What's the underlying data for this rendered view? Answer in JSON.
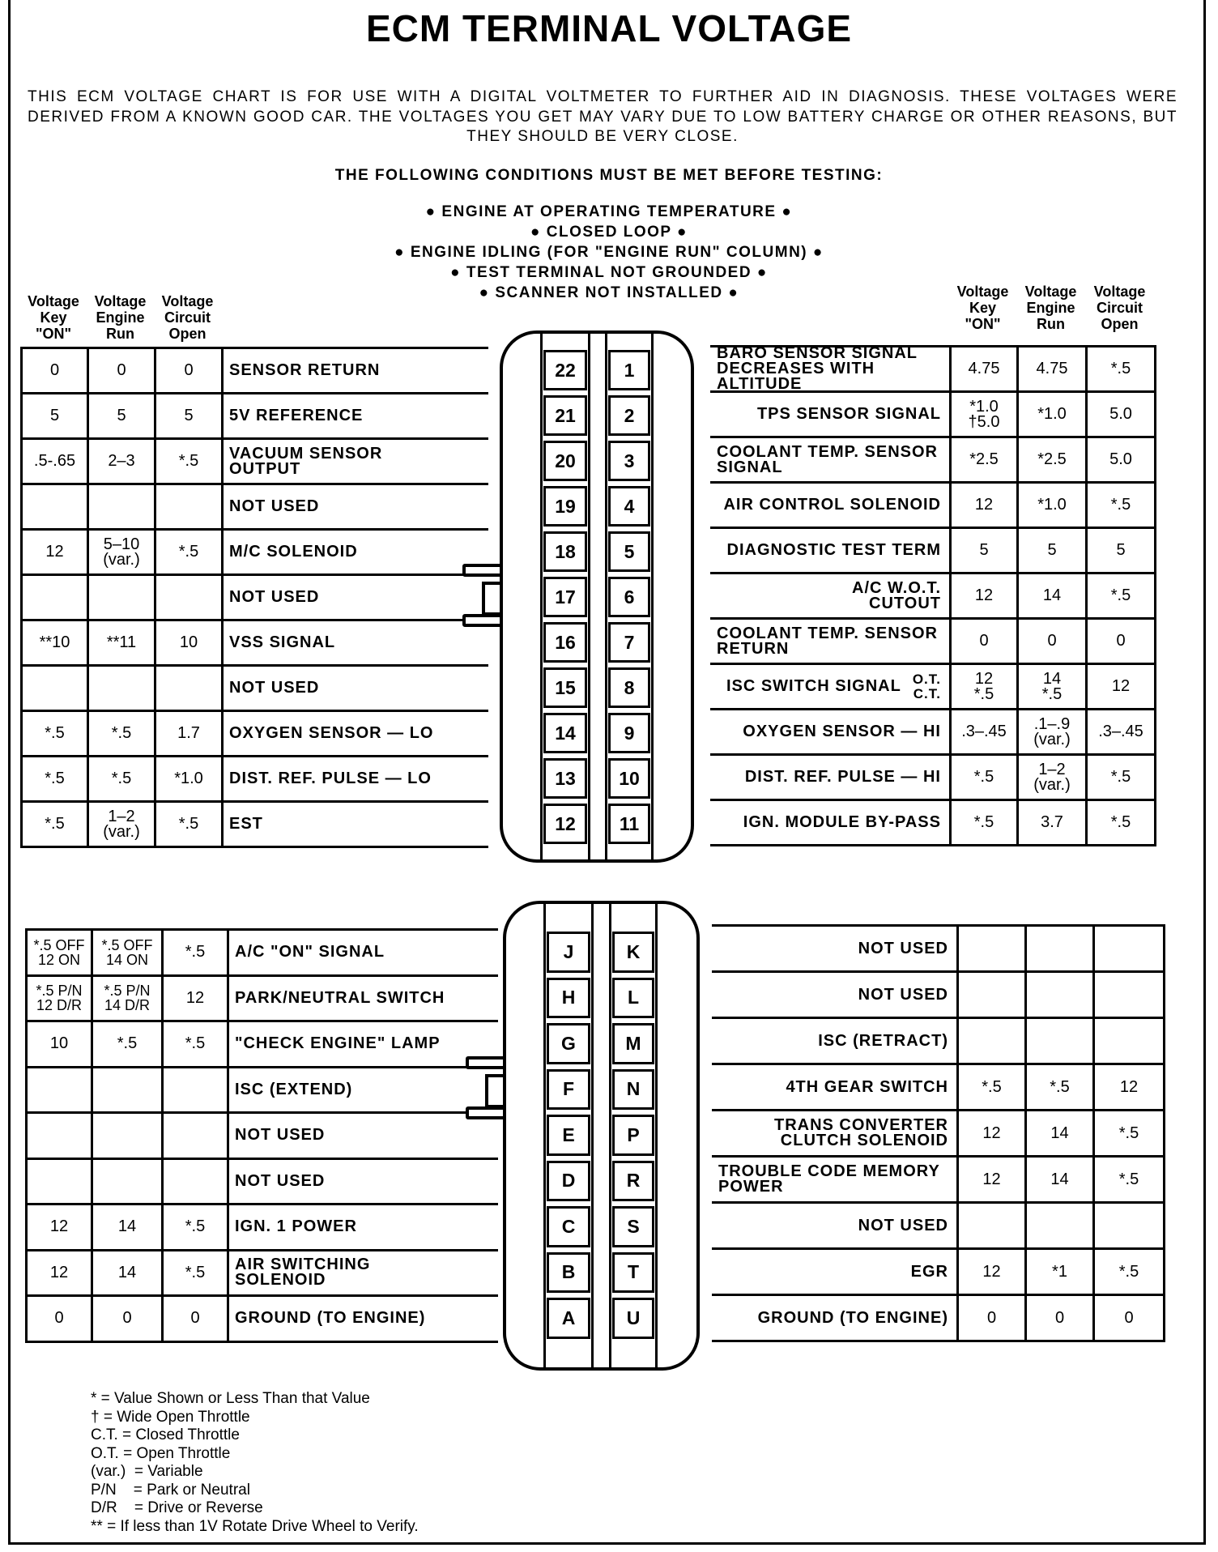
{
  "title": "ECM TERMINAL VOLTAGE",
  "intro": "THIS ECM VOLTAGE CHART IS FOR USE WITH A DIGITAL VOLTMETER TO FURTHER AID IN DIAGNOSIS. THESE VOLTAGES WERE DERIVED FROM A KNOWN GOOD CAR. THE VOLTAGES YOU GET MAY VARY DUE TO LOW BATTERY CHARGE OR OTHER REASONS, BUT THEY SHOULD BE VERY CLOSE.",
  "conditions_title": "THE FOLLOWING CONDITIONS MUST BE MET BEFORE TESTING:",
  "conditions": [
    "● ENGINE AT OPERATING TEMPERATURE ●",
    "● CLOSED LOOP ●",
    "● ENGINE IDLING (FOR \"ENGINE RUN\" COLUMN) ●",
    "● TEST TERMINAL NOT GROUNDED ●",
    "● SCANNER NOT INSTALLED ●"
  ],
  "column_headers": [
    "Voltage\nKey\n\"ON\"",
    "Voltage\nEngine\nRun",
    "Voltage\nCircuit\nOpen"
  ],
  "sections": [
    {
      "left_rows": [
        {
          "key": "0",
          "run": "0",
          "open": "0",
          "label": "SENSOR RETURN"
        },
        {
          "key": "5",
          "run": "5",
          "open": "5",
          "label": "5V REFERENCE"
        },
        {
          "key": ".5-.65",
          "run": "2–3",
          "open": "*.5",
          "label": "VACUUM SENSOR\nOUTPUT"
        },
        {
          "key": "",
          "run": "",
          "open": "",
          "label": "NOT USED"
        },
        {
          "key": "12",
          "run": "5–10\n(var.)",
          "open": "*.5",
          "label": "M/C SOLENOID"
        },
        {
          "key": "",
          "run": "",
          "open": "",
          "label": "NOT USED"
        },
        {
          "key": "**10",
          "run": "**11",
          "open": "10",
          "label": "VSS SIGNAL"
        },
        {
          "key": "",
          "run": "",
          "open": "",
          "label": "NOT USED"
        },
        {
          "key": "*.5",
          "run": "*.5",
          "open": "1.7",
          "label": "OXYGEN SENSOR — LO"
        },
        {
          "key": "*.5",
          "run": "*.5",
          "open": "*1.0",
          "label": "DIST. REF. PULSE — LO"
        },
        {
          "key": "*.5",
          "run": "1–2\n(var.)",
          "open": "*.5",
          "label": "EST"
        }
      ],
      "pins": [
        [
          "22",
          "1"
        ],
        [
          "21",
          "2"
        ],
        [
          "20",
          "3"
        ],
        [
          "19",
          "4"
        ],
        [
          "18",
          "5"
        ],
        [
          "17",
          "6"
        ],
        [
          "16",
          "7"
        ],
        [
          "15",
          "8"
        ],
        [
          "14",
          "9"
        ],
        [
          "13",
          "10"
        ],
        [
          "12",
          "11"
        ]
      ],
      "right_rows": [
        {
          "label": "BARO SENSOR SIGNAL\nDECREASES WITH ALTITUDE",
          "key": "4.75",
          "run": "4.75",
          "open": "*.5"
        },
        {
          "label": "TPS SENSOR SIGNAL",
          "key": "*1.0\n†5.0",
          "run": "*1.0",
          "open": "5.0"
        },
        {
          "label": "COOLANT TEMP. SENSOR\n  SIGNAL",
          "key": "*2.5",
          "run": "*2.5",
          "open": "5.0"
        },
        {
          "label": "AIR CONTROL SOLENOID",
          "key": "12",
          "run": "*1.0",
          "open": "*.5"
        },
        {
          "label": "DIAGNOSTIC TEST TERM",
          "key": "5",
          "run": "5",
          "open": "5"
        },
        {
          "label": "A/C W.O.T.\nCUTOUT",
          "key": "12",
          "run": "14",
          "open": "*.5"
        },
        {
          "label": "COOLANT TEMP. SENSOR\n  RETURN",
          "key": "0",
          "run": "0",
          "open": "0"
        },
        {
          "label": "ISC SWITCH SIGNAL",
          "sub": "O.T.\nC.T.",
          "key": "12\n*.5",
          "run": "14\n*.5",
          "open": "12"
        },
        {
          "label": "OXYGEN SENSOR — HI",
          "key": ".3–.45",
          "run": ".1–.9\n(var.)",
          "open": ".3–.45"
        },
        {
          "label": "DIST. REF. PULSE — HI",
          "key": "*.5",
          "run": "1–2\n(var.)",
          "open": "*.5"
        },
        {
          "label": "IGN. MODULE BY-PASS",
          "key": "*.5",
          "run": "3.7",
          "open": "*.5"
        }
      ]
    },
    {
      "left_rows": [
        {
          "key": "*.5 OFF\n12 ON",
          "run": "*.5 OFF\n14 ON",
          "open": "*.5",
          "label": "A/C \"ON\" SIGNAL"
        },
        {
          "key": "*.5 P/N\n12 D/R",
          "run": "*.5 P/N\n14 D/R",
          "open": "12",
          "label": "PARK/NEUTRAL SWITCH"
        },
        {
          "key": "10",
          "run": "*.5",
          "open": "*.5",
          "label": "\"CHECK ENGINE\" LAMP"
        },
        {
          "key": "",
          "run": "",
          "open": "",
          "label": "ISC (EXTEND)"
        },
        {
          "key": "",
          "run": "",
          "open": "",
          "label": "NOT USED"
        },
        {
          "key": "",
          "run": "",
          "open": "",
          "label": "NOT USED"
        },
        {
          "key": "12",
          "run": "14",
          "open": "*.5",
          "label": "IGN. 1 POWER"
        },
        {
          "key": "12",
          "run": "14",
          "open": "*.5",
          "label": "AIR SWITCHING\n  SOLENOID"
        },
        {
          "key": "0",
          "run": "0",
          "open": "0",
          "label": "GROUND (TO ENGINE)"
        }
      ],
      "pins": [
        [
          "J",
          "K"
        ],
        [
          "H",
          "L"
        ],
        [
          "G",
          "M"
        ],
        [
          "F",
          "N"
        ],
        [
          "E",
          "P"
        ],
        [
          "D",
          "R"
        ],
        [
          "C",
          "S"
        ],
        [
          "B",
          "T"
        ],
        [
          "A",
          "U"
        ]
      ],
      "right_rows": [
        {
          "label": "NOT USED",
          "key": "",
          "run": "",
          "open": ""
        },
        {
          "label": "NOT USED",
          "key": "",
          "run": "",
          "open": ""
        },
        {
          "label": "ISC (RETRACT)",
          "key": "",
          "run": "",
          "open": ""
        },
        {
          "label": "4TH GEAR SWITCH",
          "key": "*.5",
          "run": "*.5",
          "open": "12"
        },
        {
          "label": "TRANS CONVERTER\nCLUTCH SOLENOID",
          "key": "12",
          "run": "14",
          "open": "*.5"
        },
        {
          "label": "TROUBLE CODE MEMORY\n  POWER",
          "key": "12",
          "run": "14",
          "open": "*.5"
        },
        {
          "label": "NOT USED",
          "key": "",
          "run": "",
          "open": ""
        },
        {
          "label": "EGR",
          "key": "12",
          "run": "*1",
          "open": "*.5"
        },
        {
          "label": "GROUND (TO ENGINE)",
          "key": "0",
          "run": "0",
          "open": "0"
        }
      ]
    }
  ],
  "legend": [
    "* = Value Shown or Less Than that Value",
    "† = Wide Open Throttle",
    "C.T. = Closed Throttle",
    "O.T. = Open Throttle",
    "(var.)  = Variable",
    "P/N    = Park or Neutral",
    "D/R    = Drive or Reverse",
    "** = If less than 1V Rotate Drive Wheel to Verify."
  ]
}
